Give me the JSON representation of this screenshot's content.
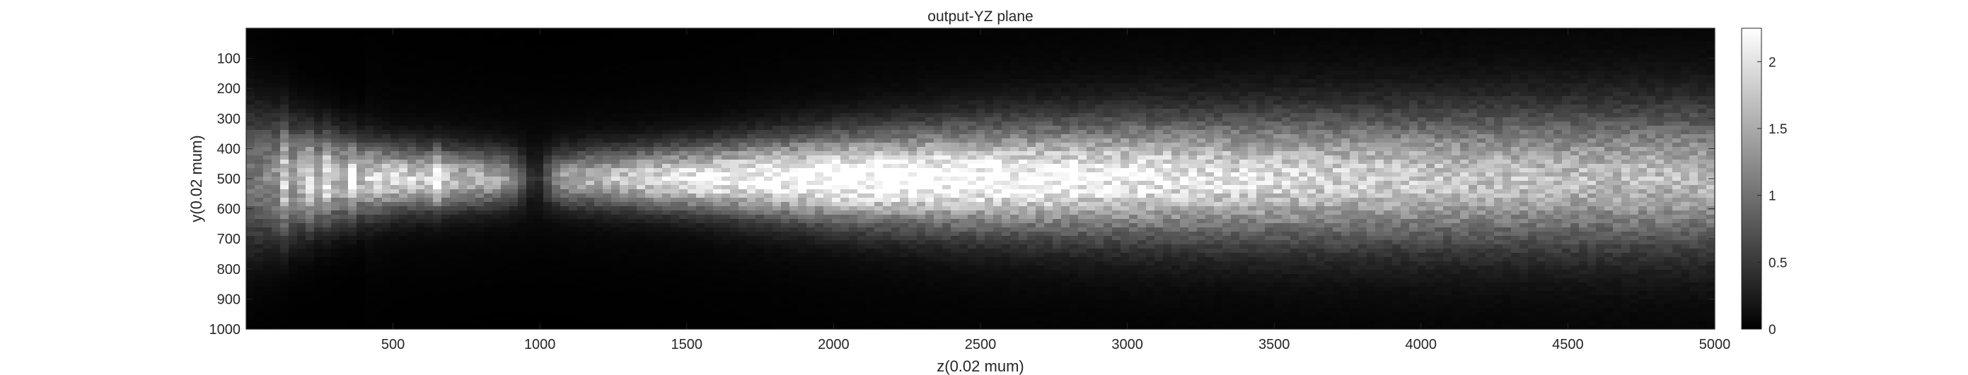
{
  "chart_data": {
    "type": "heatmap",
    "title": "output-YZ plane",
    "xlabel": "z(0.02 mum)",
    "ylabel": "y(0.02 mum)",
    "xlim": [
      0,
      5000
    ],
    "ylim": [
      0,
      1000
    ],
    "y_reversed": true,
    "x_ticks": [
      500,
      1000,
      1500,
      2000,
      2500,
      3000,
      3500,
      4000,
      4500,
      5000
    ],
    "x_tick_labels": [
      "500",
      "1000",
      "1500",
      "2000",
      "2500",
      "3000",
      "3500",
      "4000",
      "4500",
      "5000"
    ],
    "y_ticks": [
      100,
      200,
      300,
      400,
      500,
      600,
      700,
      800,
      900,
      1000
    ],
    "y_tick_labels": [
      "100",
      "200",
      "300",
      "400",
      "500",
      "600",
      "700",
      "800",
      "900",
      "1000"
    ],
    "colormap": "gray",
    "colorbar": {
      "limits": [
        0,
        2.25
      ],
      "ticks": [
        0,
        0.5,
        1,
        1.5,
        2
      ],
      "tick_labels": [
        "0",
        "0.5",
        "1",
        "1.5",
        "2"
      ]
    },
    "beam": {
      "center_y": 500,
      "focus_spots_z": [
        130,
        210,
        280,
        360,
        650
      ],
      "dark_spot_z": 980,
      "envelope_z": [
        0,
        200,
        500,
        1000,
        1500,
        2000,
        2500,
        3000,
        3500,
        4000,
        4500,
        5000
      ],
      "envelope_halfwidth_y": [
        240,
        170,
        110,
        90,
        110,
        150,
        180,
        200,
        215,
        225,
        235,
        240
      ],
      "peak_intensity_z": [
        0,
        200,
        500,
        1000,
        1500,
        2000,
        2500,
        3000,
        3500,
        4000,
        4500,
        5000
      ],
      "peak_intensity": [
        0.9,
        1.4,
        1.6,
        1.0,
        1.8,
        2.1,
        2.0,
        1.8,
        1.6,
        1.45,
        1.35,
        1.3
      ]
    }
  }
}
